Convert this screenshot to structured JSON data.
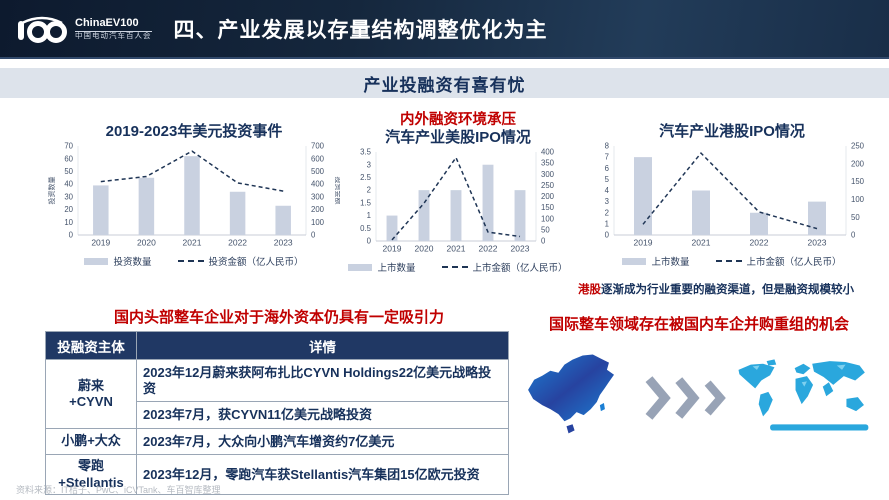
{
  "header": {
    "logo_en": "ChinaEV100",
    "logo_cn": "中国电动汽车百人会",
    "title": "四、产业发展以存量结构调整优化为主"
  },
  "banner": {
    "title": "产业投融资有喜有忧"
  },
  "charts_section": {
    "mid_annotation": "内外融资环境承压",
    "hk_note_highlight": "港股",
    "hk_note_rest": "逐渐成为行业重要的融资渠道，但是融资规模较小"
  },
  "chart_data": [
    {
      "type": "bar",
      "title": "2019-2023年美元投资事件",
      "categories": [
        "2019",
        "2020",
        "2021",
        "2022",
        "2023"
      ],
      "series": [
        {
          "name": "投资数量",
          "type": "bar",
          "axis": "left",
          "values": [
            39,
            45,
            62,
            34,
            23
          ]
        },
        {
          "name": "投资金额（亿人民币）",
          "type": "line",
          "axis": "right",
          "values": [
            420,
            460,
            660,
            410,
            345
          ]
        }
      ],
      "left_axis": {
        "min": 0,
        "max": 70,
        "step": 10,
        "label": "投资数量"
      },
      "right_axis": {
        "min": 0,
        "max": 700,
        "step": 100,
        "label": "投资金额"
      },
      "legend_position": "bottom"
    },
    {
      "type": "bar",
      "title": "汽车产业美股IPO情况",
      "categories": [
        "2019",
        "2020",
        "2021",
        "2022",
        "2023"
      ],
      "series": [
        {
          "name": "上市数量",
          "type": "bar",
          "axis": "left",
          "values": [
            1,
            2,
            2,
            3,
            2
          ]
        },
        {
          "name": "上市金额（亿人民币）",
          "type": "line",
          "axis": "right",
          "values": [
            5,
            170,
            375,
            40,
            20
          ]
        }
      ],
      "left_axis": {
        "min": 0,
        "max": 3.5,
        "step": 0.5,
        "label": ""
      },
      "right_axis": {
        "min": 0,
        "max": 400,
        "step": 50,
        "label": ""
      },
      "legend_position": "bottom"
    },
    {
      "type": "bar",
      "title": "汽车产业港股IPO情况",
      "categories": [
        "2019",
        "2021",
        "2022",
        "2023"
      ],
      "series": [
        {
          "name": "上市数量",
          "type": "bar",
          "axis": "left",
          "values": [
            7,
            4,
            2,
            3
          ]
        },
        {
          "name": "上市金额（亿人民币）",
          "type": "line",
          "axis": "right",
          "values": [
            30,
            230,
            65,
            18
          ]
        }
      ],
      "left_axis": {
        "min": 0,
        "max": 8,
        "step": 1,
        "label": ""
      },
      "right_axis": {
        "min": 0,
        "max": 250,
        "step": 50,
        "label": ""
      },
      "legend_position": "bottom"
    }
  ],
  "bottom_left": {
    "heading": "国内头部整车企业对于海外资本仍具有一定吸引力"
  },
  "bottom_right": {
    "heading": "国际整车领域存在被国内车企并购重组的机会"
  },
  "table": {
    "headers": [
      "投融资主体",
      "详情"
    ],
    "rows": [
      {
        "subject": "蔚来\n+CYVN",
        "details": [
          "2023年12月蔚来获阿布扎比CYVN Holdings22亿美元战略投资",
          "2023年7月，获CYVN11亿美元战略投资"
        ]
      },
      {
        "subject": "小鹏+大众",
        "details": [
          "2023年7月，大众向小鹏汽车增资约7亿美元"
        ]
      },
      {
        "subject": "零跑\n+Stellantis",
        "details": [
          "2023年12月，零跑汽车获Stellantis汽车集团15亿欧元投资"
        ]
      }
    ]
  },
  "footer": {
    "source": "资料来源：IT桔子、PwC、iCVTank、车百智库整理"
  },
  "colors": {
    "header_bg": "#15273d",
    "banner_bg": "#dde3eb",
    "navy": "#17315b",
    "accent_red": "#c00000",
    "bar_fill": "#c9d1e0",
    "line": "#1f3555",
    "tick_text": "#44536b",
    "china_map_blue": "#2743a0",
    "world_map_blue": "#2aa7dd",
    "chevron_gray": "#98a3b6"
  }
}
